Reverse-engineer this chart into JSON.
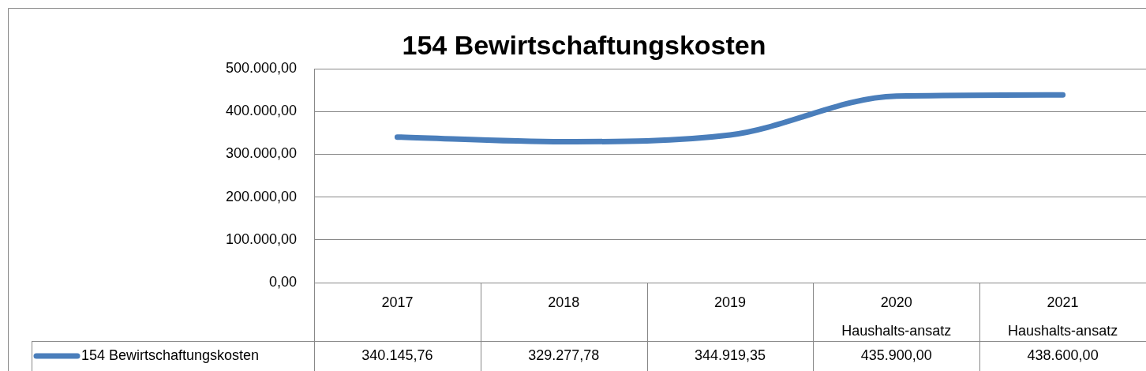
{
  "chart_data": {
    "type": "line",
    "title": "154 Bewirtschaftungskosten",
    "categories": [
      "2017",
      "2018",
      "2019",
      "2020\nHaushalts-ansatz",
      "2021\nHaushalts-ansatz"
    ],
    "series": [
      {
        "name": "154 Bewirtschaftungskosten",
        "color": "#4a7ebb",
        "values": [
          340145.76,
          329277.78,
          344919.35,
          435900,
          438600
        ],
        "value_labels": [
          "340.145,76",
          "329.277,78",
          "344.919,35",
          "435.900,00",
          "438.600,00"
        ]
      }
    ],
    "ylim": [
      0,
      500000
    ],
    "yticks": [
      {
        "value": 0,
        "label": "0,00"
      },
      {
        "value": 100000,
        "label": "100.000,00"
      },
      {
        "value": 200000,
        "label": "200.000,00"
      },
      {
        "value": 300000,
        "label": "300.000,00"
      },
      {
        "value": 400000,
        "label": "400.000,00"
      },
      {
        "value": 500000,
        "label": "500.000,00"
      }
    ],
    "grid": "y",
    "legend": "bottom"
  }
}
